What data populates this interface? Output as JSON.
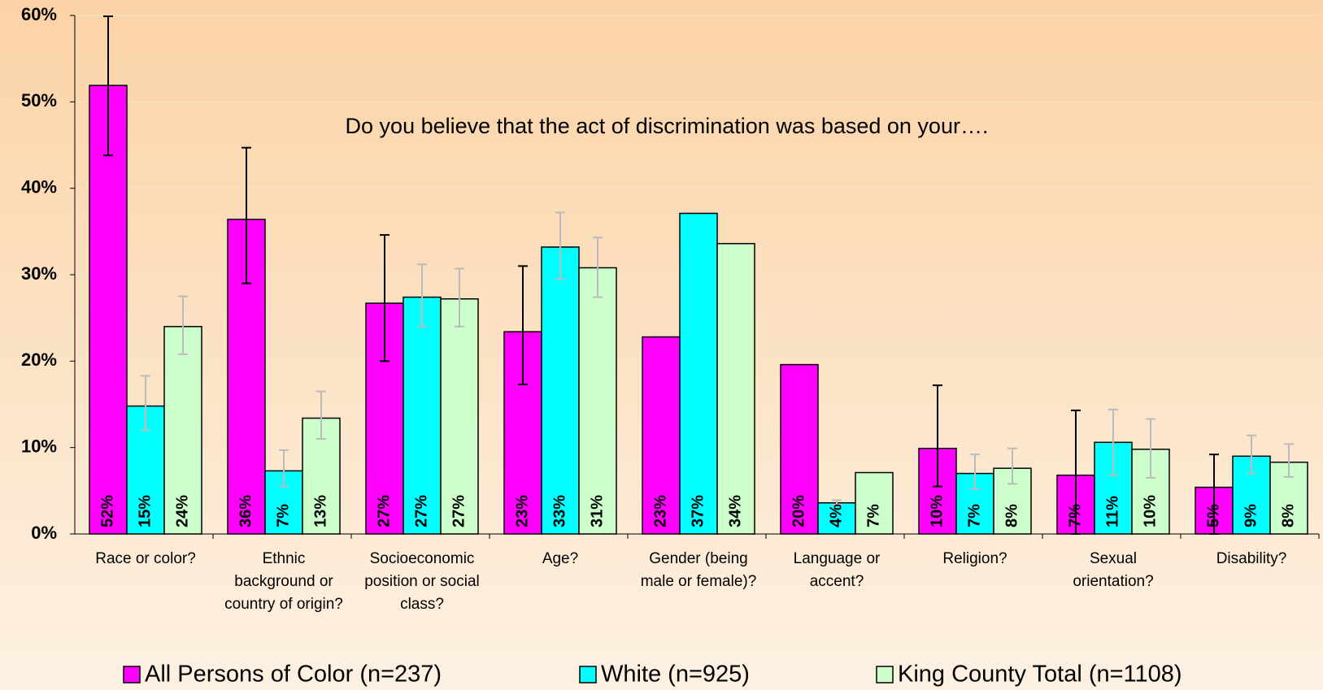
{
  "chart_data": {
    "type": "bar",
    "annotation": "Do you believe that the act of discrimination was based on your….",
    "categories": [
      "Race or color?",
      "Ethnic background or country of origin?",
      "Socioeconomic position or social class?",
      "Age?",
      "Gender (being male or female)?",
      "Language or accent?",
      "Religion?",
      "Sexual orientation?",
      "Disability?"
    ],
    "series": [
      {
        "name": "All Persons of Color (n=237)",
        "color": "#ff00ff",
        "error_color": "#000000",
        "values": [
          51.9,
          36.4,
          26.7,
          23.4,
          22.8,
          19.6,
          9.9,
          6.8,
          5.4
        ],
        "value_labels": [
          "52%",
          "36%",
          "27%",
          "23%",
          "23%",
          "20%",
          "10%",
          "7%",
          "5%"
        ],
        "error_low": [
          43.8,
          29,
          20,
          17.3,
          null,
          null,
          5.5,
          0,
          0
        ],
        "error_high": [
          59.9,
          44.7,
          34.6,
          31,
          null,
          null,
          17.2,
          14.3,
          9.2
        ]
      },
      {
        "name": "White (n=925)",
        "color": "#00ffff",
        "error_color": "#bbbbbb",
        "values": [
          14.8,
          7.3,
          27.4,
          33.2,
          37.1,
          3.6,
          7,
          10.6,
          9
        ],
        "value_labels": [
          "15%",
          "7%",
          "27%",
          "33%",
          "37%",
          "4%",
          "7%",
          "11%",
          "9%"
        ],
        "error_low": [
          12,
          5.5,
          24,
          29.5,
          null,
          3.4,
          5.2,
          6.8,
          7
        ],
        "error_high": [
          18.3,
          9.7,
          31.2,
          37.2,
          null,
          3.9,
          9.2,
          14.4,
          11.4
        ]
      },
      {
        "name": "King County Total (n=1108)",
        "color": "#ccffcc",
        "error_color": "#bbbbbb",
        "values": [
          24,
          13.4,
          27.2,
          30.8,
          33.6,
          7.1,
          7.6,
          9.8,
          8.3
        ],
        "value_labels": [
          "24%",
          "13%",
          "27%",
          "31%",
          "34%",
          "7%",
          "8%",
          "10%",
          "8%"
        ],
        "error_low": [
          20.8,
          11,
          24,
          27.4,
          null,
          null,
          5.8,
          6.5,
          6.6
        ],
        "error_high": [
          27.5,
          16.5,
          30.7,
          34.3,
          null,
          null,
          9.9,
          13.3,
          10.4
        ]
      }
    ],
    "ylim": [
      0,
      60
    ],
    "yticks": [
      {
        "value": 0,
        "label": "0%"
      },
      {
        "value": 10,
        "label": "10%"
      },
      {
        "value": 20,
        "label": "20%"
      },
      {
        "value": 30,
        "label": "30%"
      },
      {
        "value": 40,
        "label": "40%"
      },
      {
        "value": 50,
        "label": "50%"
      },
      {
        "value": 60,
        "label": "60%"
      }
    ],
    "grid": true
  }
}
